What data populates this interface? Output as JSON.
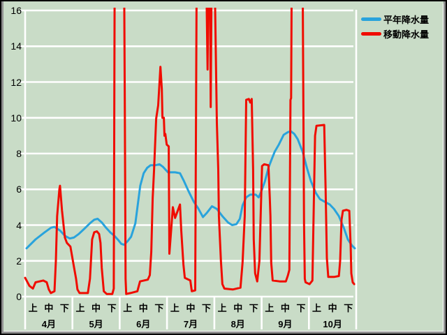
{
  "chart_data": {
    "type": "line",
    "title": "",
    "background_color": "#c9dcc7",
    "gridline_color": "#ffffff",
    "grid": true,
    "legend_position": "top-right",
    "x_axis": {
      "months": [
        "4月",
        "5月",
        "6月",
        "7月",
        "8月",
        "9月",
        "10月"
      ],
      "period_labels": [
        "上",
        "中",
        "下"
      ],
      "periods_per_month": 3
    },
    "y_axis": {
      "min": 0,
      "max": 16,
      "tick_step": 2,
      "ticks": [
        0,
        2,
        4,
        6,
        8,
        10,
        12,
        14,
        16
      ]
    },
    "series": [
      {
        "name": "平年降水量",
        "color": "#29a3dc",
        "points": [
          [
            0.09,
            2.7
          ],
          [
            0.66,
            3.2
          ],
          [
            1.24,
            3.6
          ],
          [
            1.64,
            3.85
          ],
          [
            1.86,
            3.9
          ],
          [
            2.21,
            3.7
          ],
          [
            2.52,
            3.4
          ],
          [
            2.83,
            3.25
          ],
          [
            3.09,
            3.3
          ],
          [
            3.4,
            3.5
          ],
          [
            3.76,
            3.8
          ],
          [
            4.11,
            4.1
          ],
          [
            4.38,
            4.3
          ],
          [
            4.6,
            4.35
          ],
          [
            4.86,
            4.15
          ],
          [
            5.13,
            3.85
          ],
          [
            5.39,
            3.6
          ],
          [
            5.66,
            3.4
          ],
          [
            5.92,
            3.15
          ],
          [
            6.1,
            2.95
          ],
          [
            6.28,
            2.9
          ],
          [
            6.5,
            3.1
          ],
          [
            6.72,
            3.35
          ],
          [
            6.99,
            4.1
          ],
          [
            7.3,
            6.2
          ],
          [
            7.52,
            6.9
          ],
          [
            7.74,
            7.2
          ],
          [
            7.96,
            7.35
          ],
          [
            8.27,
            7.35
          ],
          [
            8.53,
            7.4
          ],
          [
            8.75,
            7.25
          ],
          [
            9.06,
            6.95
          ],
          [
            9.51,
            6.95
          ],
          [
            9.82,
            6.9
          ],
          [
            10.08,
            6.45
          ],
          [
            10.39,
            5.85
          ],
          [
            10.7,
            5.3
          ],
          [
            10.97,
            4.95
          ],
          [
            11.28,
            4.45
          ],
          [
            11.54,
            4.7
          ],
          [
            11.85,
            5.05
          ],
          [
            12.16,
            4.9
          ],
          [
            12.51,
            4.5
          ],
          [
            12.87,
            4.15
          ],
          [
            13.13,
            4.0
          ],
          [
            13.4,
            4.05
          ],
          [
            13.62,
            4.35
          ],
          [
            13.79,
            5.1
          ],
          [
            14.02,
            5.55
          ],
          [
            14.28,
            5.7
          ],
          [
            14.63,
            5.7
          ],
          [
            14.81,
            5.55
          ],
          [
            14.99,
            5.9
          ],
          [
            15.21,
            6.45
          ],
          [
            15.43,
            7.2
          ],
          [
            15.65,
            7.7
          ],
          [
            15.83,
            8.1
          ],
          [
            16.09,
            8.5
          ],
          [
            16.4,
            9.05
          ],
          [
            16.67,
            9.2
          ],
          [
            16.85,
            9.25
          ],
          [
            17.07,
            9.1
          ],
          [
            17.29,
            8.8
          ],
          [
            17.6,
            8.1
          ],
          [
            17.87,
            7.2
          ],
          [
            18.13,
            6.45
          ],
          [
            18.44,
            5.8
          ],
          [
            18.7,
            5.45
          ],
          [
            19.01,
            5.3
          ],
          [
            19.32,
            5.15
          ],
          [
            19.59,
            4.9
          ],
          [
            19.9,
            4.5
          ],
          [
            20.21,
            3.85
          ],
          [
            20.47,
            3.2
          ],
          [
            20.74,
            2.85
          ],
          [
            20.91,
            2.7
          ]
        ]
      },
      {
        "name": "移動降水量",
        "color": "#f00c00",
        "clipped_above": 16,
        "points": [
          [
            0,
            1.05
          ],
          [
            0.27,
            0.6
          ],
          [
            0.49,
            0.45
          ],
          [
            0.66,
            0.8
          ],
          [
            1.15,
            0.9
          ],
          [
            1.37,
            0.8
          ],
          [
            1.5,
            0.4
          ],
          [
            1.63,
            0.2
          ],
          [
            1.86,
            0.3
          ],
          [
            1.95,
            2.0
          ],
          [
            2.03,
            4.5
          ],
          [
            2.17,
            6.0
          ],
          [
            2.21,
            6.2
          ],
          [
            2.34,
            4.8
          ],
          [
            2.52,
            3.3
          ],
          [
            2.65,
            3.0
          ],
          [
            2.87,
            2.8
          ],
          [
            3.05,
            1.9
          ],
          [
            3.23,
            1.0
          ],
          [
            3.32,
            0.4
          ],
          [
            3.45,
            0.2
          ],
          [
            3.98,
            0.2
          ],
          [
            4.11,
            1.0
          ],
          [
            4.25,
            3.2
          ],
          [
            4.38,
            3.6
          ],
          [
            4.55,
            3.65
          ],
          [
            4.69,
            3.5
          ],
          [
            4.78,
            3.0
          ],
          [
            4.86,
            1.6
          ],
          [
            4.99,
            0.3
          ],
          [
            5.17,
            0.15
          ],
          [
            5.53,
            0.15
          ],
          [
            5.62,
            0.45
          ],
          [
            5.68,
            18
          ],
          [
            6.28,
            18
          ],
          [
            6.32,
            10.7
          ],
          [
            6.37,
            1.0
          ],
          [
            6.41,
            0.15
          ],
          [
            6.68,
            0.2
          ],
          [
            7.12,
            0.3
          ],
          [
            7.29,
            0.85
          ],
          [
            7.78,
            0.95
          ],
          [
            7.91,
            1.2
          ],
          [
            8.0,
            2.5
          ],
          [
            8.09,
            5.5
          ],
          [
            8.18,
            7.1
          ],
          [
            8.31,
            9.95
          ],
          [
            8.44,
            10.7
          ],
          [
            8.58,
            12.85
          ],
          [
            8.67,
            11.6
          ],
          [
            8.71,
            10.0
          ],
          [
            8.8,
            10.0
          ],
          [
            8.84,
            9.0
          ],
          [
            8.89,
            9.1
          ],
          [
            8.98,
            8.5
          ],
          [
            9.11,
            8.4
          ],
          [
            9.15,
            2.4
          ],
          [
            9.37,
            5.0
          ],
          [
            9.51,
            4.4
          ],
          [
            9.82,
            5.15
          ],
          [
            9.9,
            3.7
          ],
          [
            10.04,
            1.8
          ],
          [
            10.13,
            1.05
          ],
          [
            10.48,
            0.9
          ],
          [
            10.57,
            0.3
          ],
          [
            10.79,
            0.35
          ],
          [
            10.88,
            18
          ],
          [
            11.49,
            18
          ],
          [
            11.57,
            12.7
          ],
          [
            11.63,
            18
          ],
          [
            11.72,
            18
          ],
          [
            11.77,
            10.6
          ],
          [
            11.83,
            18
          ],
          [
            12.02,
            18
          ],
          [
            12.16,
            9.7
          ],
          [
            12.25,
            7.1
          ],
          [
            12.29,
            4.5
          ],
          [
            12.42,
            2.0
          ],
          [
            12.51,
            0.7
          ],
          [
            12.64,
            0.45
          ],
          [
            13.17,
            0.4
          ],
          [
            13.66,
            0.5
          ],
          [
            13.79,
            1.9
          ],
          [
            13.93,
            4.5
          ],
          [
            14.02,
            11.0
          ],
          [
            14.19,
            11.05
          ],
          [
            14.28,
            10.85
          ],
          [
            14.37,
            11.05
          ],
          [
            14.46,
            7.1
          ],
          [
            14.5,
            3.2
          ],
          [
            14.59,
            1.3
          ],
          [
            14.72,
            0.85
          ],
          [
            14.86,
            2.0
          ],
          [
            15.03,
            7.3
          ],
          [
            15.16,
            7.4
          ],
          [
            15.43,
            7.35
          ],
          [
            15.52,
            5.5
          ],
          [
            15.56,
            4.5
          ],
          [
            15.61,
            1.9
          ],
          [
            15.7,
            0.9
          ],
          [
            16.14,
            0.85
          ],
          [
            16.54,
            0.85
          ],
          [
            16.67,
            1.2
          ],
          [
            16.76,
            1.5
          ],
          [
            16.83,
            11.0
          ],
          [
            16.87,
            11.1
          ],
          [
            16.91,
            18
          ],
          [
            17.6,
            18
          ],
          [
            17.69,
            4.1
          ],
          [
            17.74,
            1.0
          ],
          [
            17.79,
            0.8
          ],
          [
            18.04,
            0.7
          ],
          [
            18.22,
            0.9
          ],
          [
            18.39,
            9.0
          ],
          [
            18.48,
            9.55
          ],
          [
            18.97,
            9.6
          ],
          [
            19.06,
            6.0
          ],
          [
            19.14,
            2.15
          ],
          [
            19.23,
            1.1
          ],
          [
            19.59,
            1.1
          ],
          [
            19.9,
            1.15
          ],
          [
            19.98,
            2.0
          ],
          [
            20.07,
            4.3
          ],
          [
            20.16,
            4.8
          ],
          [
            20.38,
            4.85
          ],
          [
            20.56,
            4.8
          ],
          [
            20.65,
            2.8
          ],
          [
            20.69,
            1.3
          ],
          [
            20.78,
            0.8
          ],
          [
            20.87,
            0.7
          ]
        ]
      }
    ]
  }
}
